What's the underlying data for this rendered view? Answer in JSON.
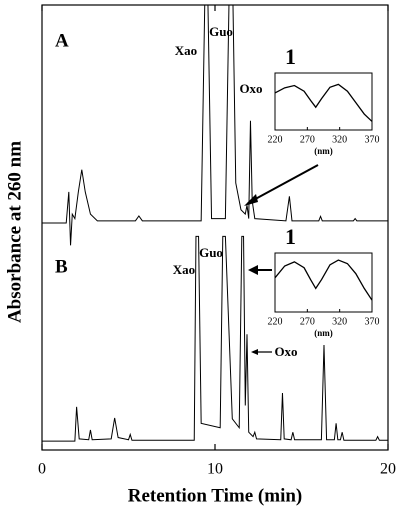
{
  "chart_data": [
    {
      "type": "line",
      "xlabel": "Retention Time (min)",
      "ylabel": "Absorbance at 260 nm",
      "xlim": [
        0,
        20
      ],
      "xticks": [
        0,
        10,
        20
      ],
      "ylim": [
        0,
        100
      ],
      "series": [
        {
          "name": "A",
          "color": "#000000",
          "x": [
            0,
            1.4,
            1.55,
            1.65,
            1.75,
            1.9,
            2.1,
            2.3,
            2.5,
            2.8,
            3.2,
            5.4,
            5.6,
            5.8,
            9.2,
            9.45,
            9.55,
            9.8,
            10.6,
            10.85,
            11.0,
            11.2,
            11.5,
            11.75,
            11.85,
            11.95,
            12.05,
            12.15,
            12.3,
            14.1,
            14.3,
            14.45,
            16.0,
            16.1,
            16.2,
            18.0,
            18.1,
            18.2,
            20
          ],
          "values": [
            51,
            51,
            58,
            46,
            53,
            52,
            58,
            63,
            58,
            53,
            51.5,
            51.5,
            52.6,
            51.5,
            51.5,
            110,
            110,
            52,
            52,
            110,
            110,
            60,
            54,
            53,
            55,
            52,
            74,
            56,
            52,
            51.5,
            57,
            51.5,
            51.5,
            52.5,
            51.5,
            51.5,
            52,
            51.5,
            51.5
          ]
        },
        {
          "name": "B",
          "color": "#000000",
          "x": [
            0,
            1.9,
            2.0,
            2.15,
            2.7,
            2.8,
            2.9,
            4.0,
            4.2,
            4.4,
            5.0,
            5.1,
            5.2,
            8.8,
            8.9,
            9.05,
            9.2,
            10.3,
            10.45,
            10.6,
            11.0,
            11.4,
            11.55,
            11.65,
            11.75,
            11.85,
            11.95,
            12.2,
            12.3,
            12.4,
            13.8,
            13.9,
            14.0,
            14.4,
            14.5,
            14.6,
            16.15,
            16.3,
            16.45,
            16.9,
            17.0,
            17.1,
            17.25,
            17.35,
            17.45,
            19.3,
            19.4,
            19.5,
            20
          ],
          "values": [
            2,
            2,
            9.7,
            2.5,
            2.3,
            4.5,
            2.3,
            2.5,
            7.2,
            2.8,
            2.3,
            3.5,
            2.2,
            2.2,
            48,
            48,
            6,
            5,
            48,
            48,
            7,
            5,
            48,
            48,
            10,
            26,
            4,
            3,
            4,
            2.5,
            2.3,
            12.8,
            2.5,
            2.3,
            4,
            2.3,
            2.3,
            23.6,
            2.3,
            2.3,
            6,
            2.3,
            2.3,
            4,
            2.2,
            2.2,
            3,
            2.2,
            2.2
          ]
        }
      ],
      "annotations": [
        "Xao",
        "Guo",
        "Oxo",
        "Xao",
        "Guo",
        "Oxo"
      ]
    },
    {
      "type": "line",
      "title": "1",
      "xlabel": "(nm)",
      "xlim": [
        220,
        370
      ],
      "xticks": [
        220,
        270,
        320,
        370
      ],
      "ylim": [
        0,
        100
      ],
      "x": [
        220,
        235,
        250,
        265,
        275,
        283,
        292,
        305,
        318,
        332,
        345,
        358,
        370
      ],
      "values": [
        65,
        74,
        78,
        68,
        52,
        40,
        55,
        75,
        80,
        68,
        48,
        28,
        15
      ],
      "color": "#000000"
    },
    {
      "type": "line",
      "title": "1",
      "xlabel": "(nm)",
      "xlim": [
        220,
        370
      ],
      "xticks": [
        220,
        270,
        320,
        370
      ],
      "ylim": [
        0,
        100
      ],
      "x": [
        220,
        235,
        250,
        265,
        275,
        283,
        292,
        305,
        318,
        332,
        345,
        358,
        370
      ],
      "values": [
        58,
        78,
        85,
        75,
        55,
        40,
        55,
        80,
        88,
        82,
        65,
        40,
        20
      ],
      "color": "#000000"
    }
  ]
}
